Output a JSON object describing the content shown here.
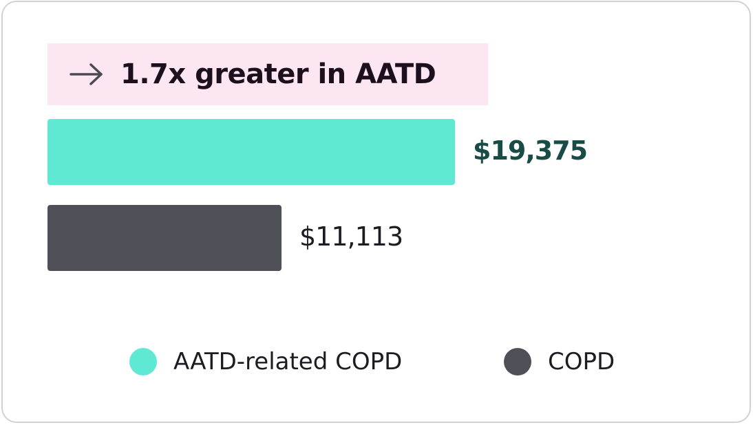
{
  "callout": {
    "text": "1.7x greater in AATD",
    "icon": "arrow-right-icon",
    "background": "#fce6f1"
  },
  "colors": {
    "aatd": "#5fe8d4",
    "aatd_label": "#1a4c47",
    "copd": "#4f4f58",
    "copd_label": "#1c1c22"
  },
  "chart_data": {
    "type": "bar",
    "orientation": "horizontal",
    "categories": [
      "AATD-related COPD",
      "COPD"
    ],
    "values": [
      19375,
      11113
    ],
    "value_labels": [
      "$19,375",
      "$11,113"
    ],
    "legend": [
      "AATD-related COPD",
      "COPD"
    ],
    "legend_placement": "bottom",
    "grid": false
  }
}
